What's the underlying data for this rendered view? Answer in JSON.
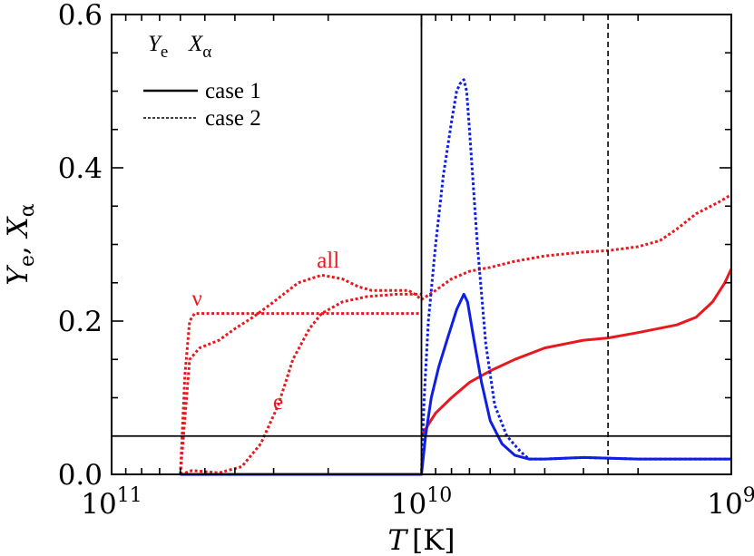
{
  "chart_data": {
    "type": "line",
    "xlabel_var": "T",
    "xlabel_unit": "[K]",
    "ylabel_y": "Y",
    "ylabel_y_sub": "e",
    "ylabel_sep": ", ",
    "ylabel_x": "X",
    "ylabel_x_sub": "α",
    "x_axis": {
      "scale": "log",
      "direction": "decreasing",
      "range": [
        100000000000.0,
        1000000000.0
      ],
      "ticks": [
        {
          "value": 100000000000.0,
          "base": "10",
          "exp": "11"
        },
        {
          "value": 10000000000.0,
          "base": "10",
          "exp": "10"
        },
        {
          "value": 1000000000.0,
          "base": "10",
          "exp": "9"
        }
      ]
    },
    "y_axis": {
      "range": [
        0,
        0.6
      ],
      "ticks": [
        {
          "value": 0.0,
          "label": "0.0"
        },
        {
          "value": 0.2,
          "label": "0.2"
        },
        {
          "value": 0.4,
          "label": "0.4"
        },
        {
          "value": 0.6,
          "label": "0.6"
        }
      ]
    },
    "legend": {
      "placement": "top-left",
      "ye_symbol": "Y",
      "ye_sub": "e",
      "xa_symbol": "X",
      "xa_sub": "α",
      "entries": [
        {
          "label": "case 1",
          "style": "solid"
        },
        {
          "label": "case 2",
          "style": "dashed"
        }
      ]
    },
    "colors": {
      "ye": "#e8191e",
      "xa": "#0f1ee6",
      "ref": "#000000"
    },
    "reference_lines": [
      {
        "orientation": "vertical",
        "x": 10000000000.0,
        "style": "solid"
      },
      {
        "orientation": "vertical",
        "x": 2500000000.0,
        "style": "dashed"
      },
      {
        "orientation": "horizontal",
        "y": 0.05,
        "style": "solid"
      }
    ],
    "annotations": [
      {
        "text": "all",
        "x": 20000000000.0,
        "y": 0.27
      },
      {
        "text": "ν",
        "x": 53000000000.0,
        "y": 0.22
      },
      {
        "text": "e",
        "x": 29000000000.0,
        "y": 0.085
      }
    ],
    "series": [
      {
        "key": "ye_case2_all",
        "color": "ye",
        "style": "dotted",
        "points": [
          [
            60000000000.0,
            0
          ],
          [
            56000000000.0,
            0.15
          ],
          [
            52000000000.0,
            0.165
          ],
          [
            45000000000.0,
            0.175
          ],
          [
            40000000000.0,
            0.19
          ],
          [
            35000000000.0,
            0.205
          ],
          [
            30000000000.0,
            0.225
          ],
          [
            25000000000.0,
            0.25
          ],
          [
            21000000000.0,
            0.26
          ],
          [
            18000000000.0,
            0.255
          ],
          [
            16000000000.0,
            0.245
          ],
          [
            14500000000.0,
            0.24
          ],
          [
            12000000000.0,
            0.24
          ],
          [
            11000000000.0,
            0.24
          ],
          [
            10500000000.0,
            0.235
          ],
          [
            10000000000.0,
            0.228
          ],
          [
            9000000000.0,
            0.24
          ],
          [
            8000000000.0,
            0.255
          ],
          [
            7000000000.0,
            0.265
          ],
          [
            6000000000.0,
            0.27
          ],
          [
            5000000000.0,
            0.278
          ],
          [
            4000000000.0,
            0.285
          ],
          [
            3000000000.0,
            0.29
          ],
          [
            2500000000.0,
            0.292
          ],
          [
            2000000000.0,
            0.297
          ],
          [
            1700000000.0,
            0.305
          ],
          [
            1500000000.0,
            0.32
          ],
          [
            1300000000.0,
            0.34
          ],
          [
            1100000000.0,
            0.355
          ],
          [
            1000000000.0,
            0.365
          ]
        ]
      },
      {
        "key": "ye_case2_nu",
        "color": "ye",
        "style": "dotted",
        "points": [
          [
            60000000000.0,
            0
          ],
          [
            58000000000.0,
            0.13
          ],
          [
            56000000000.0,
            0.2
          ],
          [
            54000000000.0,
            0.21
          ],
          [
            40000000000.0,
            0.21
          ],
          [
            30000000000.0,
            0.21
          ],
          [
            20000000000.0,
            0.21
          ],
          [
            15000000000.0,
            0.21
          ],
          [
            10500000000.0,
            0.21
          ],
          [
            10000000000.0,
            0.21
          ]
        ]
      },
      {
        "key": "ye_case2_e",
        "color": "ye",
        "style": "dotted",
        "points": [
          [
            60000000000.0,
            0
          ],
          [
            55000000000.0,
            0.005
          ],
          [
            45000000000.0,
            0.002
          ],
          [
            38000000000.0,
            0.01
          ],
          [
            33000000000.0,
            0.04
          ],
          [
            29000000000.0,
            0.09
          ],
          [
            26000000000.0,
            0.15
          ],
          [
            23000000000.0,
            0.19
          ],
          [
            21000000000.0,
            0.21
          ],
          [
            18000000000.0,
            0.225
          ],
          [
            15000000000.0,
            0.232
          ],
          [
            12000000000.0,
            0.235
          ],
          [
            10000000000.0,
            0.235
          ]
        ]
      },
      {
        "key": "ye_case1",
        "color": "ye",
        "style": "solid",
        "points": [
          [
            10000000000.0,
            0.05
          ],
          [
            9500000000.0,
            0.065
          ],
          [
            9000000000.0,
            0.08
          ],
          [
            8000000000.0,
            0.1
          ],
          [
            7000000000.0,
            0.12
          ],
          [
            6000000000.0,
            0.135
          ],
          [
            5000000000.0,
            0.15
          ],
          [
            4000000000.0,
            0.165
          ],
          [
            3000000000.0,
            0.175
          ],
          [
            2500000000.0,
            0.178
          ],
          [
            2000000000.0,
            0.185
          ],
          [
            1500000000.0,
            0.195
          ],
          [
            1300000000.0,
            0.205
          ],
          [
            1150000000.0,
            0.225
          ],
          [
            1050000000.0,
            0.25
          ],
          [
            1000000000.0,
            0.268
          ]
        ]
      },
      {
        "key": "xa_case2",
        "color": "xa",
        "style": "dotted",
        "points": [
          [
            60000000000.0,
            0
          ],
          [
            10000000000.0,
            0
          ],
          [
            9800000000.0,
            0.1
          ],
          [
            9500000000.0,
            0.2
          ],
          [
            9000000000.0,
            0.3
          ],
          [
            8500000000.0,
            0.39
          ],
          [
            8000000000.0,
            0.46
          ],
          [
            7700000000.0,
            0.5
          ],
          [
            7500000000.0,
            0.51
          ],
          [
            7300000000.0,
            0.515
          ],
          [
            7150000000.0,
            0.5
          ],
          [
            7000000000.0,
            0.45
          ],
          [
            6600000000.0,
            0.3
          ],
          [
            6200000000.0,
            0.17
          ],
          [
            5800000000.0,
            0.09
          ],
          [
            5300000000.0,
            0.05
          ],
          [
            4800000000.0,
            0.03
          ],
          [
            4500000000.0,
            0.02
          ],
          [
            4000000000.0,
            0.02
          ],
          [
            3000000000.0,
            0.022
          ],
          [
            2000000000.0,
            0.02
          ],
          [
            1000000000.0,
            0.02
          ]
        ]
      },
      {
        "key": "xa_case1",
        "color": "xa",
        "style": "solid",
        "points": [
          [
            60000000000.0,
            0
          ],
          [
            10000000000.0,
            0
          ],
          [
            9700000000.0,
            0.05
          ],
          [
            9300000000.0,
            0.1
          ],
          [
            8800000000.0,
            0.14
          ],
          [
            8200000000.0,
            0.18
          ],
          [
            7700000000.0,
            0.215
          ],
          [
            7300000000.0,
            0.235
          ],
          [
            7100000000.0,
            0.225
          ],
          [
            6800000000.0,
            0.18
          ],
          [
            6400000000.0,
            0.12
          ],
          [
            6000000000.0,
            0.07
          ],
          [
            5500000000.0,
            0.04
          ],
          [
            5000000000.0,
            0.025
          ],
          [
            4500000000.0,
            0.02
          ],
          [
            4000000000.0,
            0.02
          ],
          [
            3000000000.0,
            0.022
          ],
          [
            2000000000.0,
            0.02
          ],
          [
            1000000000.0,
            0.02
          ]
        ]
      }
    ]
  }
}
